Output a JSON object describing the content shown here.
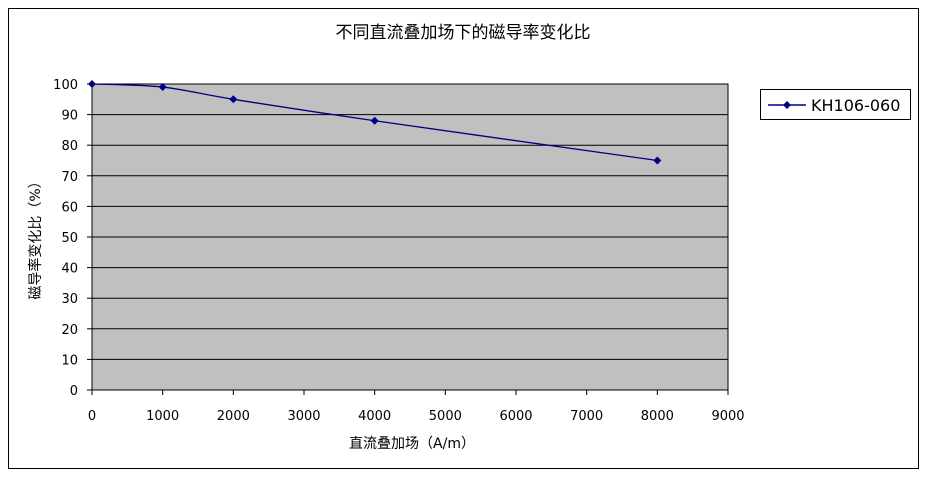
{
  "chart_data": {
    "type": "line",
    "title": "不同直流叠加场下的磁导率变化比",
    "xlabel": "直流叠加场（A/m）",
    "ylabel": "磁导率变化比（%）",
    "x_ticks": [
      "0",
      "1000",
      "2000",
      "3000",
      "4000",
      "5000",
      "6000",
      "7000",
      "8000",
      "9000"
    ],
    "y_ticks": [
      "0",
      "10",
      "20",
      "30",
      "40",
      "50",
      "60",
      "70",
      "80",
      "90",
      "100"
    ],
    "xlim": [
      0,
      9000
    ],
    "ylim": [
      0,
      100
    ],
    "grid": "horizontal",
    "legend_position": "right",
    "series": [
      {
        "name": "KH106-060",
        "color": "#000080",
        "marker": "diamond",
        "x": [
          0,
          1000,
          2000,
          4000,
          8000
        ],
        "values": [
          100,
          99,
          95,
          88,
          75
        ]
      }
    ],
    "colors": {
      "plot_background": "#c0c0c0",
      "gridline": "#000000",
      "frame": "#000000"
    }
  }
}
